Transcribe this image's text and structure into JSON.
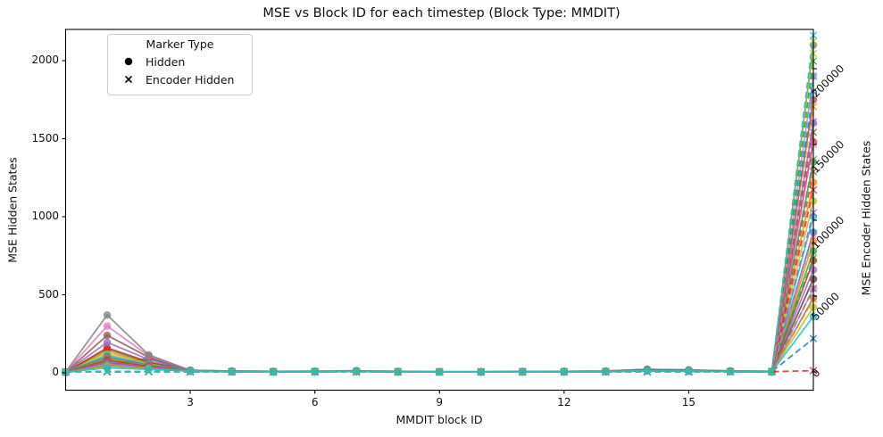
{
  "chart_data": {
    "type": "line",
    "title": "MSE vs Block ID for each timestep (Block Type: MMDIT)",
    "xlabel": "MMDIT block ID",
    "ylabel_left": "MSE Hidden States",
    "ylabel_right": "MSE Encoder Hidden States",
    "x_range": [
      0,
      18
    ],
    "x_ticks": [
      3,
      6,
      9,
      12,
      15
    ],
    "y_left_ticks": [
      0,
      500,
      1000,
      1500,
      2000
    ],
    "y_left_range": [
      -110,
      2230
    ],
    "y_right_ticks": [
      0,
      50000,
      100000,
      150000,
      200000
    ],
    "y_right_range": [
      -12000,
      226000
    ],
    "grid": false,
    "legend": {
      "title": "Marker Type",
      "position": "upper-left",
      "items": [
        {
          "label": "Hidden",
          "marker": "circle"
        },
        {
          "label": "Encoder Hidden",
          "marker": "x"
        }
      ]
    },
    "x": [
      0,
      1,
      2,
      3,
      4,
      5,
      6,
      7,
      8,
      9,
      10,
      11,
      12,
      13,
      14,
      15,
      16,
      17,
      18
    ],
    "line_styles": {
      "hidden": "solid-circle",
      "encoder": "dashed-x"
    },
    "series": [
      {
        "color": "#1f77b4",
        "hidden": [
          4,
          45,
          95,
          11,
          7,
          6,
          7,
          9,
          6,
          5,
          5,
          6,
          6,
          8,
          13,
          11,
          8,
          6,
          600
        ],
        "encoder": [
          1,
          150,
          180,
          70,
          45,
          35,
          40,
          55,
          35,
          28,
          28,
          32,
          38,
          48,
          90,
          70,
          50,
          160,
          22000
        ]
      },
      {
        "color": "#ff7f0e",
        "hidden": [
          4,
          135,
          60,
          14,
          9,
          7,
          8,
          11,
          7,
          6,
          6,
          7,
          8,
          9,
          17,
          14,
          10,
          7,
          1220
        ],
        "encoder": [
          1,
          150,
          180,
          70,
          45,
          35,
          40,
          55,
          35,
          28,
          28,
          32,
          38,
          48,
          90,
          70,
          50,
          160,
          48000
        ]
      },
      {
        "color": "#2ca02c",
        "hidden": [
          4,
          150,
          66,
          14,
          9,
          7,
          8,
          11,
          7,
          6,
          6,
          7,
          8,
          9,
          17,
          14,
          10,
          7,
          1350
        ],
        "encoder": [
          1,
          150,
          180,
          70,
          45,
          35,
          40,
          55,
          35,
          28,
          28,
          32,
          38,
          48,
          90,
          70,
          50,
          160,
          75000
        ]
      },
      {
        "color": "#d62728",
        "hidden": [
          4,
          160,
          70,
          14,
          9,
          7,
          8,
          11,
          7,
          6,
          6,
          7,
          8,
          9,
          17,
          14,
          10,
          7,
          1480
        ],
        "encoder": [
          1,
          150,
          180,
          70,
          45,
          35,
          40,
          55,
          35,
          28,
          28,
          32,
          38,
          48,
          90,
          70,
          50,
          160,
          800
        ]
      },
      {
        "color": "#9467bd",
        "hidden": [
          4,
          195,
          85,
          14,
          9,
          7,
          8,
          11,
          7,
          6,
          6,
          7,
          8,
          9,
          17,
          14,
          10,
          7,
          1600
        ],
        "encoder": [
          1,
          150,
          180,
          70,
          45,
          35,
          40,
          55,
          35,
          28,
          28,
          32,
          38,
          48,
          90,
          70,
          50,
          160,
          105000
        ]
      },
      {
        "color": "#8c564b",
        "hidden": [
          4,
          240,
          100,
          16,
          11,
          9,
          10,
          13,
          9,
          7,
          7,
          8,
          9,
          11,
          22,
          18,
          12,
          9,
          1750
        ],
        "encoder": [
          1,
          150,
          180,
          70,
          45,
          35,
          40,
          55,
          35,
          28,
          28,
          32,
          38,
          48,
          90,
          70,
          50,
          160,
          132000
        ]
      },
      {
        "color": "#e377c2",
        "hidden": [
          4,
          300,
          108,
          16,
          11,
          9,
          10,
          13,
          9,
          7,
          7,
          8,
          9,
          11,
          22,
          18,
          12,
          9,
          1900
        ],
        "encoder": [
          1,
          150,
          180,
          70,
          45,
          35,
          40,
          55,
          35,
          28,
          28,
          32,
          38,
          48,
          90,
          70,
          50,
          160,
          90000
        ]
      },
      {
        "color": "#7f7f7f",
        "hidden": [
          5,
          370,
          115,
          16,
          11,
          9,
          10,
          13,
          9,
          7,
          7,
          8,
          9,
          11,
          22,
          18,
          12,
          9,
          2100
        ],
        "encoder": [
          1,
          150,
          180,
          70,
          45,
          35,
          40,
          55,
          35,
          28,
          28,
          32,
          38,
          48,
          90,
          70,
          50,
          160,
          140000
        ]
      },
      {
        "color": "#bcbd22",
        "hidden": [
          4,
          120,
          55,
          14,
          9,
          7,
          8,
          11,
          7,
          6,
          6,
          7,
          8,
          9,
          17,
          14,
          10,
          7,
          1100
        ],
        "encoder": [
          1,
          150,
          180,
          70,
          45,
          35,
          40,
          55,
          35,
          28,
          28,
          32,
          38,
          48,
          90,
          70,
          50,
          160,
          210000
        ]
      },
      {
        "color": "#17becf",
        "hidden": [
          4,
          110,
          52,
          14,
          9,
          7,
          8,
          11,
          7,
          6,
          6,
          7,
          8,
          9,
          17,
          14,
          10,
          7,
          1000
        ],
        "encoder": [
          1,
          150,
          180,
          70,
          45,
          35,
          40,
          55,
          35,
          28,
          28,
          32,
          38,
          48,
          90,
          70,
          50,
          160,
          195000
        ]
      },
      {
        "color": "#1f77b4",
        "hidden": [
          4,
          100,
          48,
          14,
          9,
          7,
          8,
          11,
          7,
          6,
          6,
          7,
          8,
          9,
          17,
          14,
          10,
          7,
          900
        ],
        "encoder": [
          1,
          150,
          180,
          70,
          45,
          35,
          40,
          55,
          35,
          28,
          28,
          32,
          38,
          48,
          90,
          70,
          50,
          160,
          185000
        ]
      },
      {
        "color": "#ff7f0e",
        "hidden": [
          3,
          92,
          45,
          11,
          7,
          6,
          7,
          9,
          6,
          5,
          5,
          6,
          6,
          8,
          13,
          11,
          8,
          6,
          840
        ],
        "encoder": [
          1,
          150,
          180,
          70,
          45,
          35,
          40,
          55,
          35,
          28,
          28,
          32,
          38,
          48,
          90,
          70,
          50,
          160,
          175000
        ]
      },
      {
        "color": "#2ca02c",
        "hidden": [
          3,
          85,
          42,
          11,
          7,
          6,
          7,
          9,
          6,
          5,
          5,
          6,
          6,
          8,
          13,
          11,
          8,
          6,
          780
        ],
        "encoder": [
          1,
          150,
          180,
          70,
          45,
          35,
          40,
          55,
          35,
          28,
          28,
          32,
          38,
          48,
          90,
          70,
          50,
          160,
          205000
        ]
      },
      {
        "color": "#d62728",
        "hidden": [
          3,
          78,
          40,
          11,
          7,
          6,
          7,
          9,
          6,
          5,
          5,
          6,
          6,
          8,
          13,
          11,
          8,
          6,
          720
        ],
        "encoder": [
          1,
          150,
          180,
          70,
          45,
          35,
          40,
          55,
          35,
          28,
          28,
          32,
          38,
          48,
          90,
          70,
          50,
          160,
          120000
        ]
      },
      {
        "color": "#9467bd",
        "hidden": [
          3,
          70,
          37,
          11,
          7,
          6,
          7,
          9,
          6,
          5,
          5,
          6,
          6,
          8,
          13,
          11,
          8,
          6,
          660
        ],
        "encoder": [
          1,
          150,
          180,
          70,
          45,
          35,
          40,
          55,
          35,
          28,
          28,
          32,
          38,
          48,
          90,
          70,
          50,
          160,
          165000
        ]
      },
      {
        "color": "#8c564b",
        "hidden": [
          3,
          62,
          34,
          11,
          7,
          6,
          7,
          9,
          6,
          5,
          5,
          6,
          6,
          8,
          13,
          11,
          8,
          6,
          600
        ],
        "encoder": [
          1,
          150,
          180,
          70,
          45,
          35,
          40,
          55,
          35,
          28,
          28,
          32,
          38,
          48,
          90,
          70,
          50,
          160,
          158000
        ]
      },
      {
        "color": "#e377c2",
        "hidden": [
          3,
          55,
          31,
          11,
          7,
          6,
          7,
          9,
          6,
          5,
          5,
          6,
          6,
          8,
          13,
          11,
          8,
          6,
          540
        ],
        "encoder": [
          1,
          150,
          180,
          70,
          45,
          35,
          40,
          55,
          35,
          28,
          28,
          32,
          38,
          48,
          90,
          70,
          50,
          160,
          150000
        ]
      },
      {
        "color": "#7f7f7f",
        "hidden": [
          3,
          48,
          28,
          11,
          7,
          6,
          7,
          9,
          6,
          5,
          5,
          6,
          6,
          8,
          13,
          11,
          8,
          6,
          480
        ],
        "encoder": [
          1,
          150,
          180,
          70,
          45,
          35,
          40,
          55,
          35,
          28,
          28,
          32,
          38,
          48,
          90,
          70,
          50,
          160,
          55000
        ]
      },
      {
        "color": "#bcbd22",
        "hidden": [
          2,
          40,
          25,
          11,
          7,
          6,
          7,
          9,
          6,
          5,
          5,
          6,
          6,
          8,
          13,
          11,
          8,
          6,
          420
        ],
        "encoder": [
          1,
          150,
          180,
          70,
          45,
          35,
          40,
          55,
          35,
          28,
          28,
          32,
          38,
          48,
          90,
          70,
          50,
          160,
          218000
        ]
      },
      {
        "color": "#17becf",
        "hidden": [
          2,
          32,
          22,
          11,
          7,
          6,
          7,
          9,
          6,
          5,
          5,
          6,
          6,
          8,
          13,
          11,
          8,
          6,
          360
        ],
        "encoder": [
          1,
          150,
          180,
          70,
          45,
          35,
          40,
          55,
          35,
          28,
          28,
          32,
          38,
          48,
          90,
          70,
          50,
          160,
          222000
        ]
      }
    ]
  }
}
